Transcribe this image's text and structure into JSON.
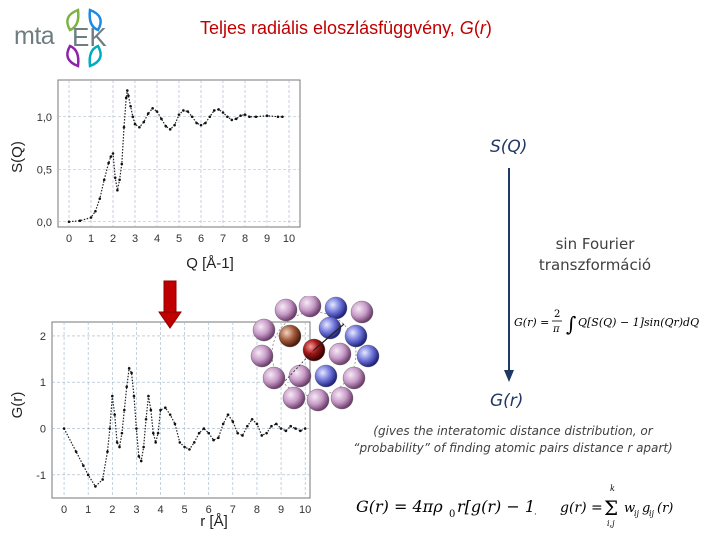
{
  "title": {
    "text": "Teljes radiális eloszlásfüggvény, ",
    "italic_G": "G",
    "paren_open": "(",
    "italic_r": "r",
    "paren_close": ")"
  },
  "logo": {
    "text": "mta",
    "leaf_colors": [
      "#7cb342",
      "#1e88e5",
      "#8e24aa",
      "#00acc1"
    ]
  },
  "sq_label": "S(Q)",
  "gr_label": "G(r)",
  "fourier_lines": [
    "sin Fourier",
    "transzformáció"
  ],
  "note_lines": [
    "(gives the interatomic distance distribution, or",
    "“probability” of finding atomic pairs distance r apart)"
  ],
  "formulas": {
    "transform": "G(r) = 2/π ∫ Q[S(Q) − 1] sin(Qr) dQ",
    "gr": "G(r) = 4πρ₀r[g(r) − 1]",
    "gsum": "g(r) = Σ wᵢⱼ gᵢⱼ(r)"
  },
  "colors": {
    "title": "#c00000",
    "arrow_fill": "#c00000",
    "label": "#1f3864",
    "line_arrow": "#1f3864"
  },
  "chart_data": [
    {
      "type": "line",
      "xlabel": "Q [Å-1]",
      "ylabel": "S(Q)",
      "xlim": [
        -0.5,
        10.5
      ],
      "ylim": [
        -0.05,
        1.35
      ],
      "x_ticks": [
        "0",
        "1",
        "2",
        "3",
        "4",
        "5",
        "6",
        "7",
        "8",
        "9",
        "10"
      ],
      "y_ticks": [
        "0,0",
        "0,5",
        "1,0"
      ],
      "grid": true,
      "series": [
        {
          "x": [
            0.0,
            0.5,
            1.0,
            1.2,
            1.4,
            1.6,
            1.8,
            1.9,
            2.0,
            2.1,
            2.2,
            2.3,
            2.4,
            2.5,
            2.6,
            2.65,
            2.7,
            2.8,
            2.9,
            3.0,
            3.2,
            3.4,
            3.6,
            3.8,
            4.0,
            4.2,
            4.4,
            4.6,
            4.8,
            5.0,
            5.2,
            5.4,
            5.6,
            5.8,
            6.0,
            6.2,
            6.4,
            6.6,
            6.8,
            7.0,
            7.2,
            7.4,
            7.6,
            7.8,
            8.0,
            8.2,
            8.5,
            9.0,
            9.5,
            9.7
          ],
          "y": [
            0.0,
            0.01,
            0.04,
            0.1,
            0.22,
            0.4,
            0.56,
            0.62,
            0.65,
            0.42,
            0.3,
            0.4,
            0.55,
            0.9,
            1.18,
            1.25,
            1.2,
            1.1,
            1.0,
            0.93,
            0.9,
            0.95,
            1.03,
            1.08,
            1.05,
            0.98,
            0.91,
            0.88,
            0.92,
            1.02,
            1.06,
            1.05,
            1.0,
            0.94,
            0.92,
            0.94,
            1.0,
            1.06,
            1.07,
            1.04,
            1.0,
            0.97,
            0.98,
            1.01,
            1.02,
            1.0,
            1.0,
            1.01,
            1.0,
            1.0
          ]
        }
      ]
    },
    {
      "type": "line",
      "xlabel": "r [Å]",
      "ylabel": "G(r)",
      "xlim": [
        -0.5,
        10.2
      ],
      "ylim": [
        -1.5,
        2.3
      ],
      "x_ticks": [
        "0",
        "1",
        "2",
        "3",
        "4",
        "5",
        "6",
        "7",
        "8",
        "9",
        "10"
      ],
      "y_ticks": [
        "-1",
        "0",
        "1",
        "2"
      ],
      "grid": true,
      "series": [
        {
          "x": [
            0.0,
            0.5,
            0.8,
            1.0,
            1.3,
            1.6,
            1.8,
            1.9,
            2.0,
            2.1,
            2.2,
            2.3,
            2.4,
            2.5,
            2.6,
            2.7,
            2.8,
            2.9,
            3.0,
            3.1,
            3.2,
            3.3,
            3.4,
            3.5,
            3.6,
            3.7,
            3.8,
            3.9,
            4.0,
            4.2,
            4.4,
            4.6,
            4.8,
            5.0,
            5.2,
            5.4,
            5.6,
            5.8,
            6.0,
            6.2,
            6.4,
            6.6,
            6.8,
            7.0,
            7.2,
            7.4,
            7.6,
            7.8,
            8.0,
            8.2,
            8.4,
            8.6,
            8.8,
            9.0,
            9.2,
            9.4,
            9.6,
            9.8,
            10.0
          ],
          "y": [
            0.0,
            -0.5,
            -0.8,
            -1.0,
            -1.25,
            -1.1,
            -0.5,
            0.0,
            0.7,
            0.3,
            -0.3,
            -0.4,
            -0.1,
            0.4,
            0.9,
            1.3,
            1.2,
            0.7,
            0.0,
            -0.6,
            -0.7,
            -0.4,
            0.2,
            0.7,
            0.4,
            -0.1,
            -0.3,
            -0.1,
            0.4,
            0.45,
            0.3,
            0.1,
            -0.3,
            -0.4,
            -0.45,
            -0.3,
            -0.1,
            0.0,
            -0.1,
            -0.25,
            -0.2,
            0.1,
            0.3,
            0.15,
            -0.1,
            -0.15,
            0.05,
            0.2,
            0.1,
            -0.15,
            -0.1,
            0.05,
            0.1,
            0.0,
            -0.05,
            0.05,
            0.0,
            -0.05,
            0.0
          ]
        }
      ]
    }
  ]
}
